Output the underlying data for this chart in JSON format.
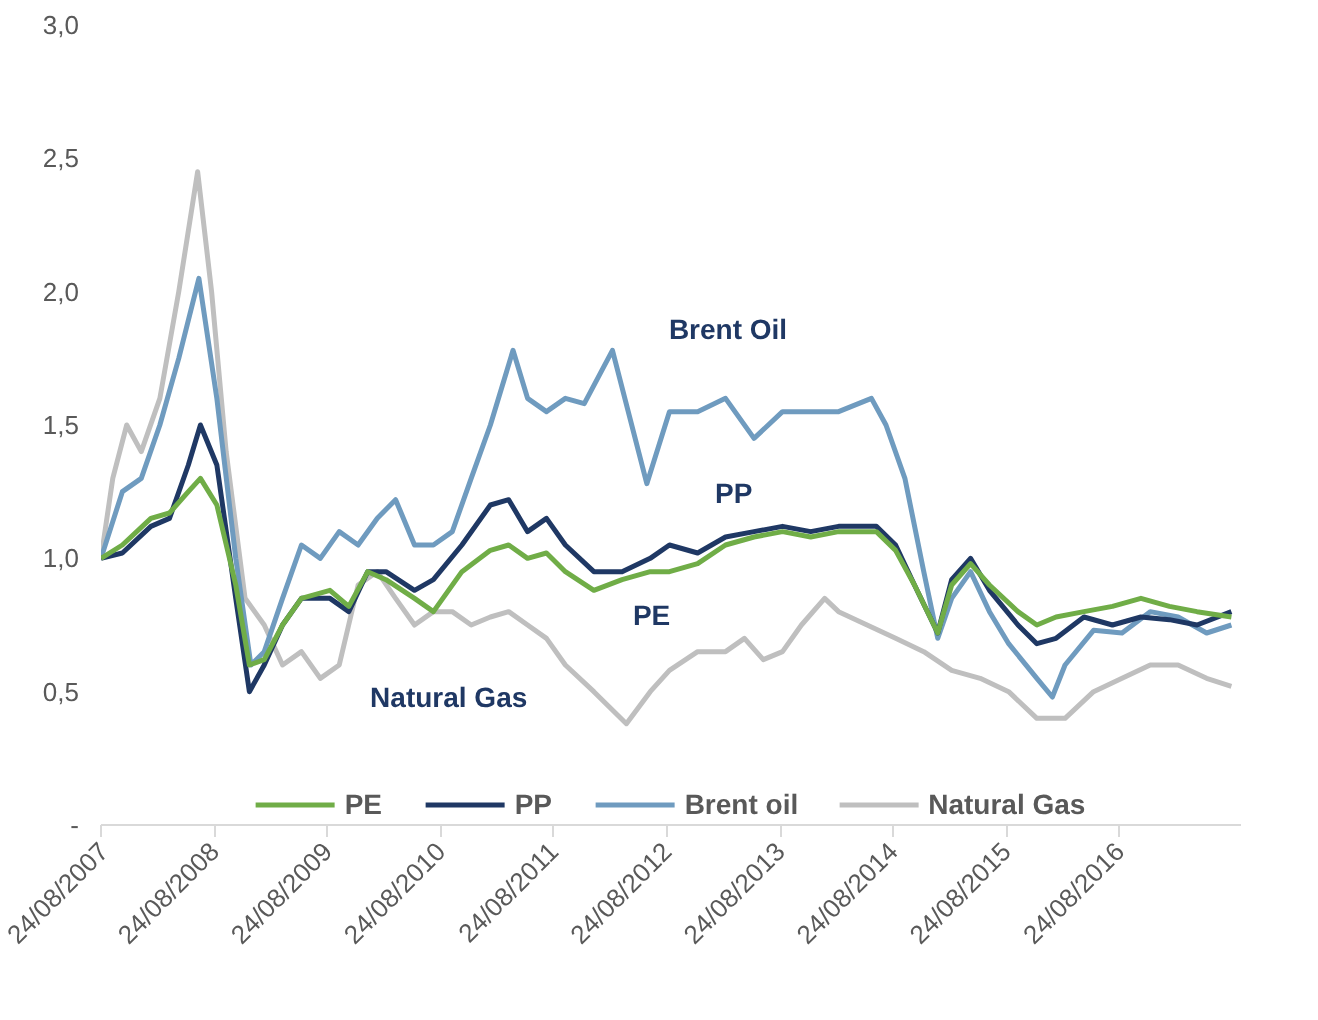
{
  "chart_data": {
    "type": "line",
    "xlim": [
      "2007-08-24",
      "2017-09-20"
    ],
    "xticks": [
      {
        "value": "2007-08-24",
        "label": "24/08/2007"
      },
      {
        "value": "2008-08-24",
        "label": "24/08/2008"
      },
      {
        "value": "2009-08-24",
        "label": "24/08/2009"
      },
      {
        "value": "2010-08-24",
        "label": "24/08/2010"
      },
      {
        "value": "2011-08-24",
        "label": "24/08/2011"
      },
      {
        "value": "2012-08-24",
        "label": "24/08/2012"
      },
      {
        "value": "2013-08-24",
        "label": "24/08/2013"
      },
      {
        "value": "2014-08-24",
        "label": "24/08/2014"
      },
      {
        "value": "2015-08-24",
        "label": "24/08/2015"
      },
      {
        "value": "2016-08-24",
        "label": "24/08/2016"
      }
    ],
    "ylim": [
      0,
      3
    ],
    "yticks": [
      {
        "value": 0,
        "label": "-"
      },
      {
        "value": 0.5,
        "label": "0,5"
      },
      {
        "value": 1,
        "label": "1,0"
      },
      {
        "value": 1.5,
        "label": "1,5"
      },
      {
        "value": 2,
        "label": "2,0"
      },
      {
        "value": 2.5,
        "label": "2,5"
      },
      {
        "value": 3,
        "label": "3,0"
      }
    ],
    "grid": false,
    "legend": "bottom",
    "marker": "none",
    "line_style": "solid",
    "annotations": [
      "Brent Oil",
      "PP",
      "PE",
      "Natural Gas"
    ],
    "series": [
      {
        "name": "PE",
        "color": "#70ad47",
        "x": [
          "2007-08-24",
          "2007-11-01",
          "2008-02-01",
          "2008-04-01",
          "2008-06-01",
          "2008-07-10",
          "2008-09-01",
          "2008-11-01",
          "2008-12-15",
          "2009-02-01",
          "2009-04-01",
          "2009-06-01",
          "2009-09-01",
          "2009-11-01",
          "2010-01-01",
          "2010-03-01",
          "2010-06-01",
          "2010-08-01",
          "2010-11-01",
          "2011-02-01",
          "2011-04-01",
          "2011-06-01",
          "2011-08-01",
          "2011-10-01",
          "2012-01-01",
          "2012-04-01",
          "2012-07-01",
          "2012-09-01",
          "2012-12-01",
          "2013-03-01",
          "2013-06-01",
          "2013-09-01",
          "2013-12-01",
          "2014-03-01",
          "2014-07-01",
          "2014-09-01",
          "2014-11-01",
          "2015-01-15",
          "2015-03-01",
          "2015-05-01",
          "2015-07-01",
          "2015-10-01",
          "2015-12-01",
          "2016-02-01",
          "2016-05-01",
          "2016-08-01",
          "2016-11-01",
          "2017-02-01",
          "2017-05-01",
          "2017-08-20"
        ],
        "values": [
          1.0,
          1.05,
          1.15,
          1.17,
          1.25,
          1.3,
          1.2,
          0.9,
          0.6,
          0.62,
          0.75,
          0.85,
          0.88,
          0.82,
          0.95,
          0.92,
          0.85,
          0.8,
          0.95,
          1.03,
          1.05,
          1.0,
          1.02,
          0.95,
          0.88,
          0.92,
          0.95,
          0.95,
          0.98,
          1.05,
          1.08,
          1.1,
          1.08,
          1.1,
          1.1,
          1.03,
          0.9,
          0.72,
          0.9,
          0.98,
          0.9,
          0.8,
          0.75,
          0.78,
          0.8,
          0.82,
          0.85,
          0.82,
          0.8,
          0.78
        ]
      },
      {
        "name": "PP",
        "color": "#1f3864",
        "x": [
          "2007-08-24",
          "2007-11-01",
          "2008-02-01",
          "2008-04-01",
          "2008-06-01",
          "2008-07-10",
          "2008-09-01",
          "2008-11-01",
          "2008-12-15",
          "2009-02-01",
          "2009-04-01",
          "2009-06-01",
          "2009-09-01",
          "2009-11-01",
          "2010-01-01",
          "2010-03-01",
          "2010-06-01",
          "2010-08-01",
          "2010-11-01",
          "2011-02-01",
          "2011-04-01",
          "2011-06-01",
          "2011-08-01",
          "2011-10-01",
          "2012-01-01",
          "2012-04-01",
          "2012-07-01",
          "2012-09-01",
          "2012-12-01",
          "2013-03-01",
          "2013-06-01",
          "2013-09-01",
          "2013-12-01",
          "2014-03-01",
          "2014-07-01",
          "2014-09-01",
          "2014-11-01",
          "2015-01-15",
          "2015-03-01",
          "2015-05-01",
          "2015-07-01",
          "2015-10-01",
          "2015-12-01",
          "2016-02-01",
          "2016-05-01",
          "2016-08-01",
          "2016-11-01",
          "2017-02-01",
          "2017-05-01",
          "2017-08-20"
        ],
        "values": [
          1.0,
          1.02,
          1.12,
          1.15,
          1.35,
          1.5,
          1.35,
          0.85,
          0.5,
          0.6,
          0.75,
          0.85,
          0.85,
          0.8,
          0.95,
          0.95,
          0.88,
          0.92,
          1.05,
          1.2,
          1.22,
          1.1,
          1.15,
          1.05,
          0.95,
          0.95,
          1.0,
          1.05,
          1.02,
          1.08,
          1.1,
          1.12,
          1.1,
          1.12,
          1.12,
          1.05,
          0.9,
          0.72,
          0.92,
          1.0,
          0.88,
          0.75,
          0.68,
          0.7,
          0.78,
          0.75,
          0.78,
          0.77,
          0.75,
          0.8
        ]
      },
      {
        "name": "Brent oil",
        "color": "#6f9bbf",
        "x": [
          "2007-08-24",
          "2007-11-01",
          "2008-01-01",
          "2008-03-01",
          "2008-05-01",
          "2008-07-05",
          "2008-09-01",
          "2008-11-01",
          "2008-12-20",
          "2009-02-01",
          "2009-04-01",
          "2009-06-01",
          "2009-08-01",
          "2009-10-01",
          "2009-12-01",
          "2010-02-01",
          "2010-04-01",
          "2010-06-01",
          "2010-08-01",
          "2010-10-01",
          "2010-12-01",
          "2011-02-01",
          "2011-04-15",
          "2011-06-01",
          "2011-08-01",
          "2011-10-01",
          "2011-12-01",
          "2012-03-01",
          "2012-06-20",
          "2012-09-01",
          "2012-12-01",
          "2013-03-01",
          "2013-06-01",
          "2013-09-01",
          "2013-12-01",
          "2014-03-01",
          "2014-06-15",
          "2014-08-01",
          "2014-10-01",
          "2014-12-01",
          "2015-01-15",
          "2015-03-01",
          "2015-05-01",
          "2015-07-01",
          "2015-09-01",
          "2015-12-01",
          "2016-01-20",
          "2016-03-01",
          "2016-06-01",
          "2016-09-01",
          "2016-12-01",
          "2017-03-01",
          "2017-06-01",
          "2017-08-20"
        ],
        "values": [
          1.0,
          1.25,
          1.3,
          1.5,
          1.75,
          2.05,
          1.6,
          1.0,
          0.6,
          0.65,
          0.85,
          1.05,
          1.0,
          1.1,
          1.05,
          1.15,
          1.22,
          1.05,
          1.05,
          1.1,
          1.3,
          1.5,
          1.78,
          1.6,
          1.55,
          1.6,
          1.58,
          1.78,
          1.28,
          1.55,
          1.55,
          1.6,
          1.45,
          1.55,
          1.55,
          1.55,
          1.6,
          1.5,
          1.3,
          0.95,
          0.7,
          0.85,
          0.95,
          0.8,
          0.68,
          0.55,
          0.48,
          0.6,
          0.73,
          0.72,
          0.8,
          0.78,
          0.72,
          0.75
        ]
      },
      {
        "name": "Natural Gas",
        "color": "#bfbfbf",
        "x": [
          "2007-08-24",
          "2007-10-01",
          "2007-11-15",
          "2008-01-01",
          "2008-03-01",
          "2008-05-01",
          "2008-07-01",
          "2008-08-15",
          "2008-10-01",
          "2008-12-01",
          "2009-02-01",
          "2009-04-01",
          "2009-06-01",
          "2009-08-01",
          "2009-10-01",
          "2009-12-01",
          "2010-02-01",
          "2010-04-01",
          "2010-06-01",
          "2010-08-01",
          "2010-10-01",
          "2010-12-01",
          "2011-02-01",
          "2011-04-01",
          "2011-06-01",
          "2011-08-01",
          "2011-10-01",
          "2012-01-01",
          "2012-04-15",
          "2012-07-01",
          "2012-09-01",
          "2012-12-01",
          "2013-03-01",
          "2013-05-01",
          "2013-07-01",
          "2013-09-01",
          "2013-11-01",
          "2014-01-15",
          "2014-03-01",
          "2014-06-01",
          "2014-09-01",
          "2014-12-01",
          "2015-03-01",
          "2015-06-01",
          "2015-09-01",
          "2015-12-01",
          "2016-03-01",
          "2016-06-01",
          "2016-09-01",
          "2016-12-01",
          "2017-03-01",
          "2017-06-01",
          "2017-08-20"
        ],
        "values": [
          1.0,
          1.3,
          1.5,
          1.4,
          1.6,
          2.0,
          2.45,
          2.0,
          1.4,
          0.85,
          0.75,
          0.6,
          0.65,
          0.55,
          0.6,
          0.9,
          0.95,
          0.85,
          0.75,
          0.8,
          0.8,
          0.75,
          0.78,
          0.8,
          0.75,
          0.7,
          0.6,
          0.5,
          0.38,
          0.5,
          0.58,
          0.65,
          0.65,
          0.7,
          0.62,
          0.65,
          0.75,
          0.85,
          0.8,
          0.75,
          0.7,
          0.65,
          0.58,
          0.55,
          0.5,
          0.4,
          0.4,
          0.5,
          0.55,
          0.6,
          0.6,
          0.55,
          0.52
        ]
      }
    ]
  }
}
